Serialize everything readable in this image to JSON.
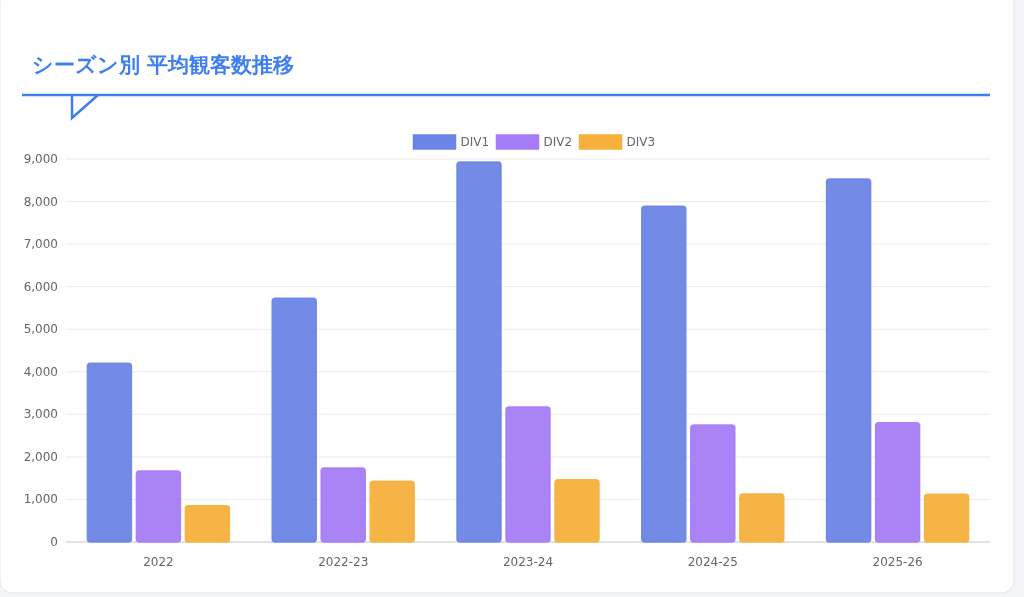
{
  "chart_data": {
    "type": "bar",
    "title": "シーズン別 平均観客数推移",
    "categories": [
      "2022",
      "2022-23",
      "2023-24",
      "2024-25",
      "2025-26"
    ],
    "series": [
      {
        "name": "DIV1",
        "color": "#6b84e6",
        "values": [
          4200,
          5730,
          8930,
          7890,
          8530
        ]
      },
      {
        "name": "DIV2",
        "color": "#a57cf7",
        "values": [
          1670,
          1740,
          3170,
          2750,
          2800
        ]
      },
      {
        "name": "DIV3",
        "color": "#f7b03c",
        "values": [
          850,
          1430,
          1460,
          1130,
          1120
        ]
      }
    ],
    "ylim": [
      0,
      9000
    ],
    "yticks": [
      {
        "value": 0,
        "label": "0"
      },
      {
        "value": 1000,
        "label": "1,000"
      },
      {
        "value": 2000,
        "label": "2,000"
      },
      {
        "value": 3000,
        "label": "3,000"
      },
      {
        "value": 4000,
        "label": "4,000"
      },
      {
        "value": 5000,
        "label": "5,000"
      },
      {
        "value": 6000,
        "label": "6,000"
      },
      {
        "value": 7000,
        "label": "7,000"
      },
      {
        "value": 8000,
        "label": "8,000"
      },
      {
        "value": 9000,
        "label": "9,000"
      }
    ],
    "grid": "y",
    "legend": "top"
  }
}
